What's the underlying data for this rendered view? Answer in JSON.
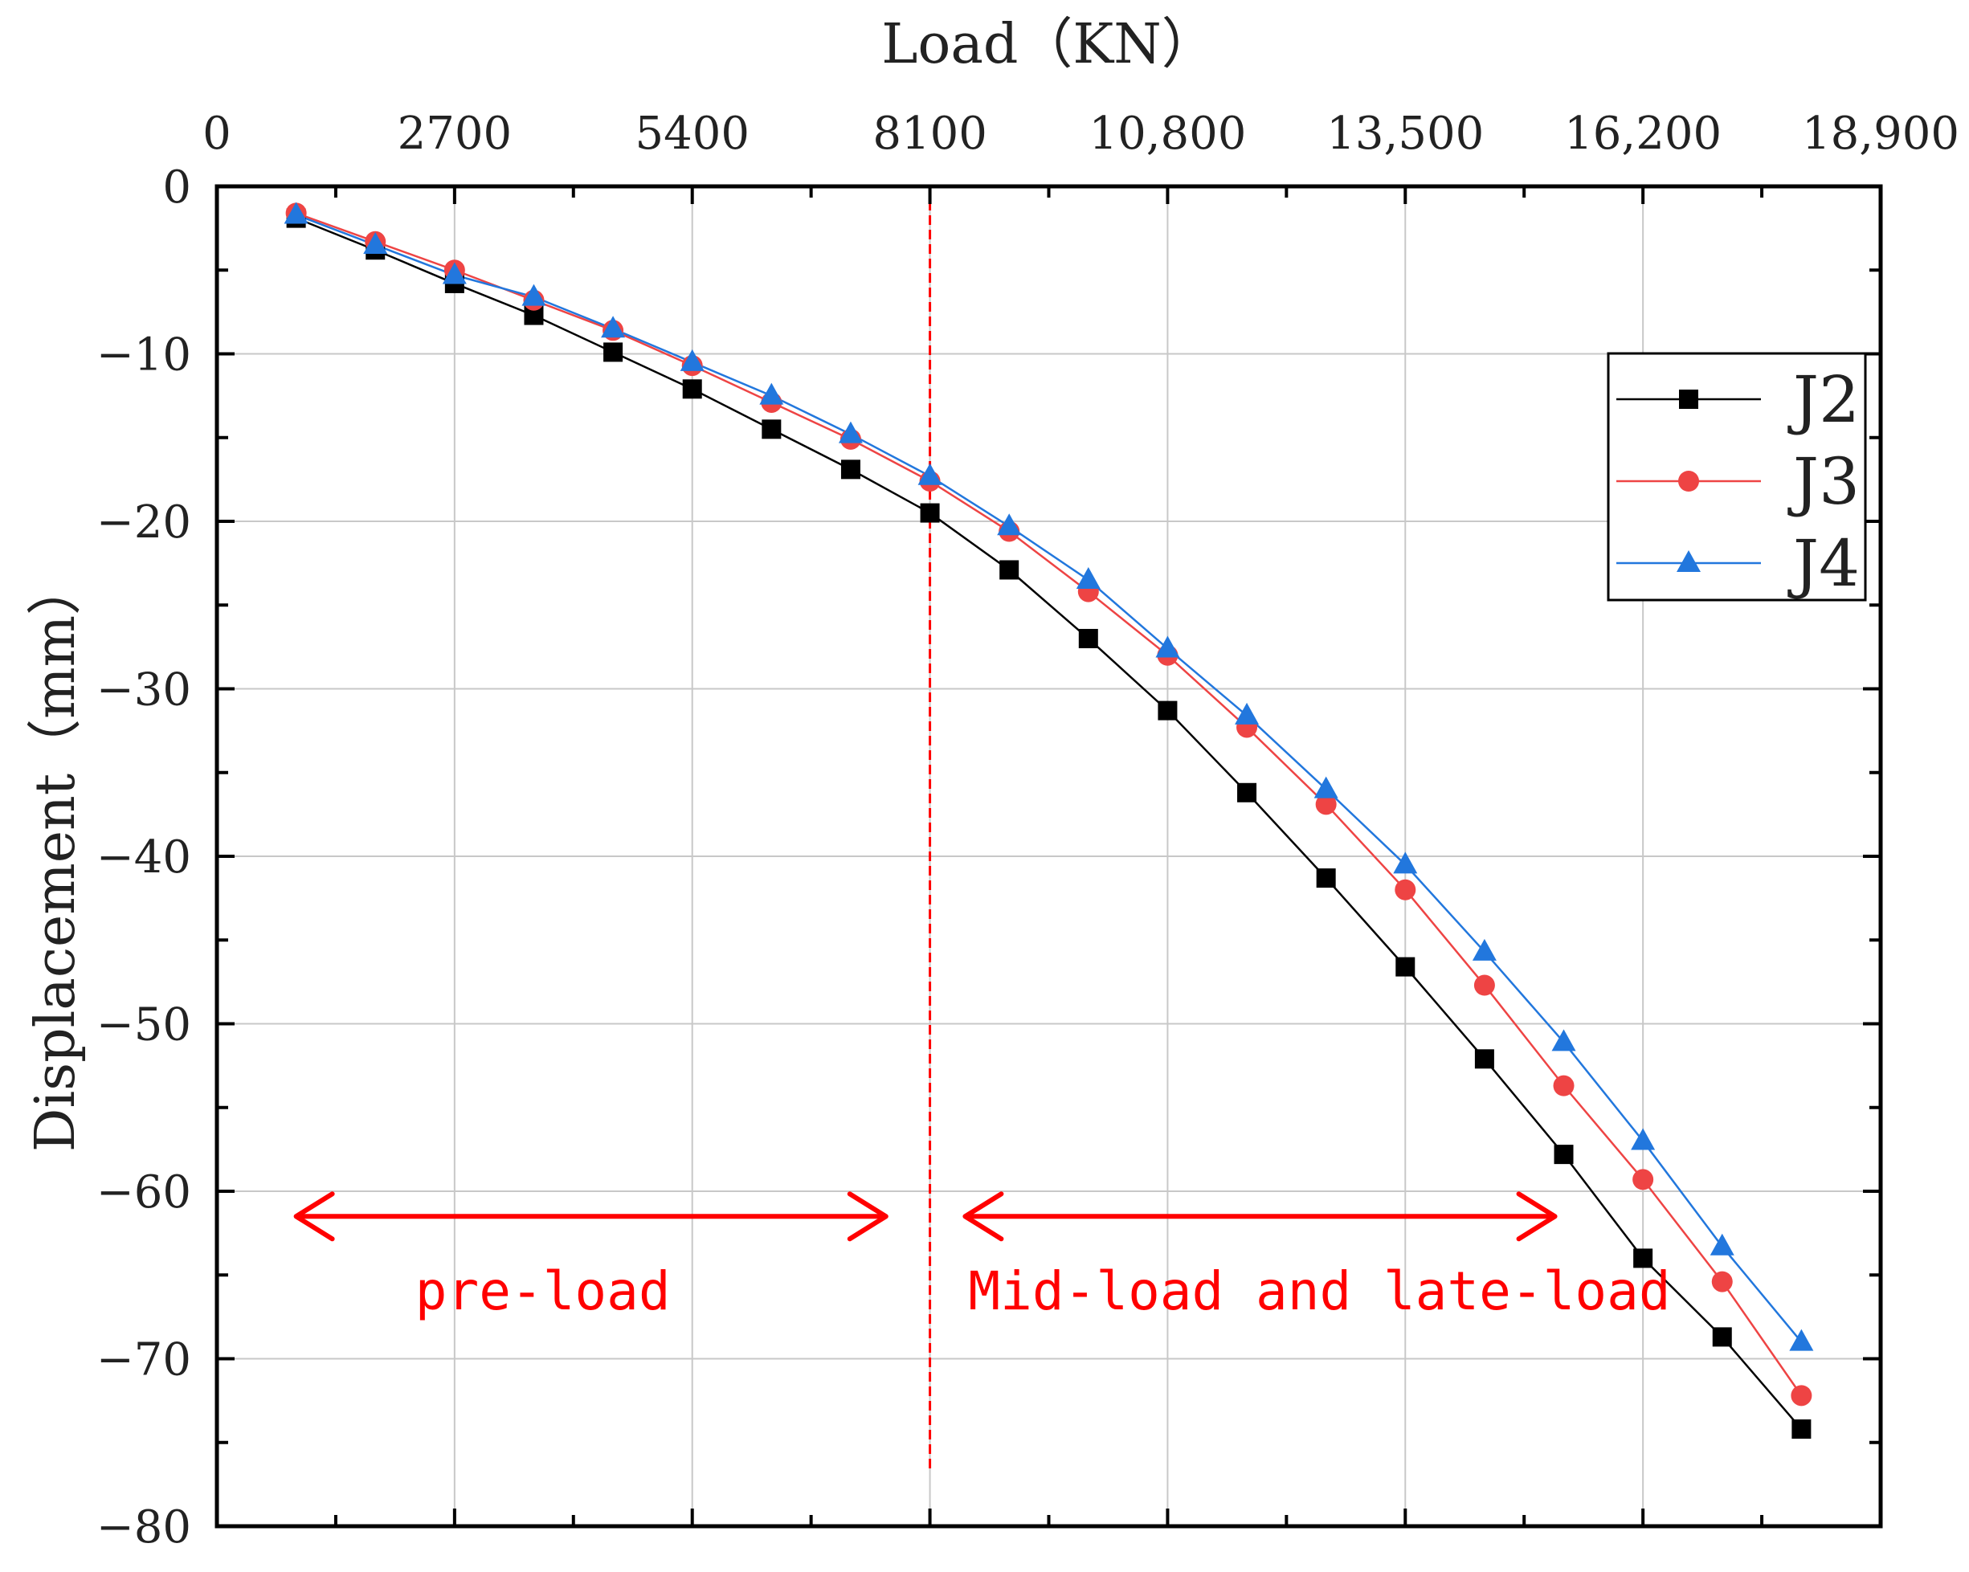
{
  "chart_data": {
    "type": "line",
    "title": "",
    "xlabel": "Load（KN）",
    "ylabel": "Displacement（mm）",
    "xlim": [
      0,
      18900
    ],
    "ylim": [
      -80,
      0
    ],
    "x_axis_position": "top",
    "grid": true,
    "x_ticks": [
      {
        "value": 0,
        "label": "0"
      },
      {
        "value": 2700,
        "label": "2700"
      },
      {
        "value": 5400,
        "label": "5400"
      },
      {
        "value": 8100,
        "label": "8100"
      },
      {
        "value": 10800,
        "label": "10,800"
      },
      {
        "value": 13500,
        "label": "13,500"
      },
      {
        "value": 16200,
        "label": "16,200"
      },
      {
        "value": 18900,
        "label": "18,900"
      }
    ],
    "y_ticks": [
      {
        "value": 0,
        "label": "0"
      },
      {
        "value": -10,
        "label": "−10"
      },
      {
        "value": -20,
        "label": "−20"
      },
      {
        "value": -30,
        "label": "−30"
      },
      {
        "value": -40,
        "label": "−40"
      },
      {
        "value": -50,
        "label": "−50"
      },
      {
        "value": -60,
        "label": "−60"
      },
      {
        "value": -70,
        "label": "−70"
      },
      {
        "value": -80,
        "label": "−80"
      }
    ],
    "x": [
      900,
      1800,
      2700,
      3600,
      4500,
      5400,
      6300,
      7200,
      8100,
      9000,
      9900,
      10800,
      11700,
      12600,
      13500,
      14400,
      15300,
      16200,
      17100,
      18000
    ],
    "series": [
      {
        "name": "J2",
        "color": "#000000",
        "marker": "square",
        "values": [
          -1.9,
          -3.8,
          -5.8,
          -7.7,
          -9.9,
          -12.1,
          -14.5,
          -16.9,
          -19.5,
          -22.9,
          -27.0,
          -31.3,
          -36.2,
          -41.3,
          -46.6,
          -52.1,
          -57.8,
          -64.0,
          -68.7,
          -74.2
        ]
      },
      {
        "name": "J3",
        "color": "#ee4444",
        "marker": "circle",
        "values": [
          -1.6,
          -3.3,
          -5.0,
          -6.8,
          -8.6,
          -10.7,
          -12.9,
          -15.1,
          -17.6,
          -20.6,
          -24.2,
          -28.0,
          -32.3,
          -36.9,
          -42.0,
          -47.7,
          -53.7,
          -59.3,
          -65.4,
          -72.2
        ]
      },
      {
        "name": "J4",
        "color": "#2277dd",
        "marker": "triangle",
        "values": [
          -1.7,
          -3.5,
          -5.3,
          -6.6,
          -8.5,
          -10.5,
          -12.5,
          -14.8,
          -17.3,
          -20.3,
          -23.5,
          -27.6,
          -31.6,
          -36.0,
          -40.5,
          -45.7,
          -51.1,
          -57.0,
          -63.3,
          -69.0
        ]
      }
    ],
    "legend": {
      "position": "top-right"
    },
    "divider": {
      "x": 8100,
      "color": "#ff0000",
      "style": "dashed"
    },
    "annotations": [
      {
        "text": "pre-load",
        "color": "#ff0000",
        "arrow_from_x": 900,
        "arrow_to_x": 7600,
        "y": -61.5,
        "label_y": -66
      },
      {
        "text": "Mid-load and late-load",
        "color": "#ff0000",
        "arrow_from_x": 8500,
        "arrow_to_x": 15200,
        "y": -61.5,
        "label_y": -66
      }
    ]
  }
}
